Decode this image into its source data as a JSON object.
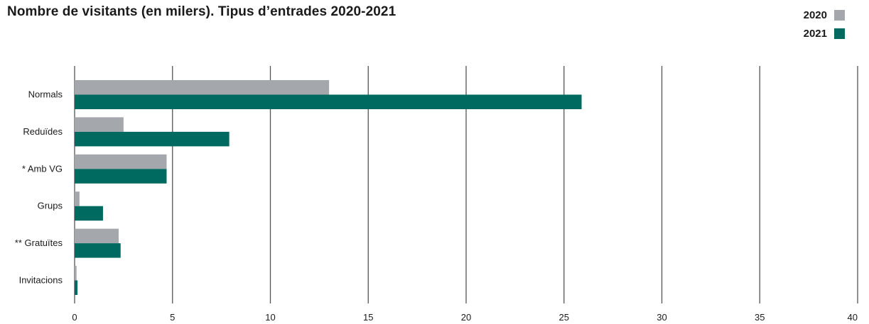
{
  "chart_data": {
    "type": "bar",
    "orientation": "horizontal",
    "title": "Nombre de visitants (en milers). Tipus d’entrades 2020-2021",
    "categories": [
      "Normals",
      "Reduïdes",
      "* Amb VG",
      "Grups",
      "** Gratuïtes",
      "Invitacions"
    ],
    "series": [
      {
        "name": "2020",
        "color": "#a4a8ad",
        "values": [
          13.0,
          2.5,
          4.7,
          0.25,
          2.25,
          0.1
        ]
      },
      {
        "name": "2021",
        "color": "#006a60",
        "values": [
          25.9,
          7.9,
          4.7,
          1.45,
          2.35,
          0.15
        ]
      }
    ],
    "xlim": [
      0,
      40
    ],
    "xticks": [
      "0",
      "5",
      "10",
      "15",
      "20",
      "25",
      "30",
      "35",
      "40"
    ],
    "xlabel": "",
    "ylabel": "",
    "grid": true,
    "legend_position": "top-right"
  }
}
